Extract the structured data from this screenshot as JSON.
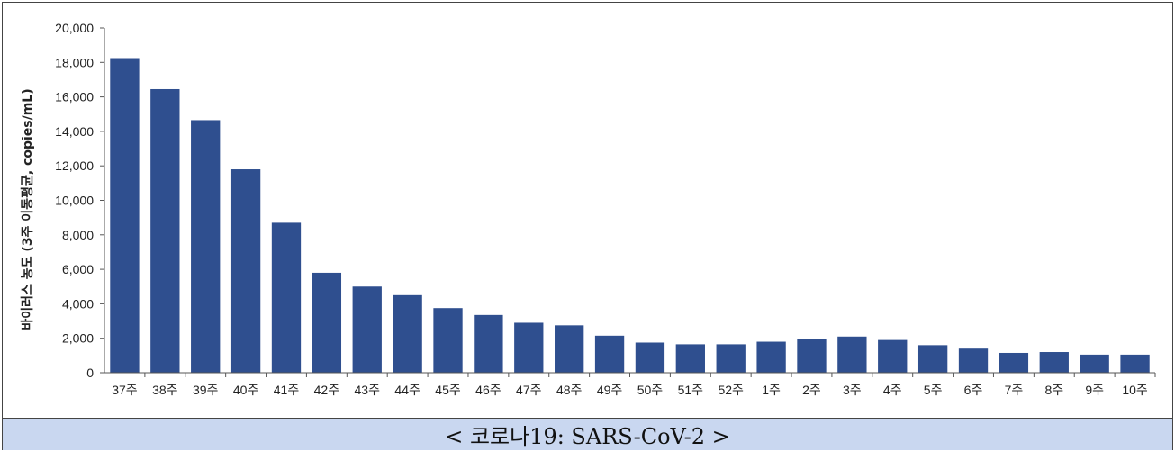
{
  "chart_data": {
    "type": "bar",
    "title": "",
    "xlabel": "",
    "ylabel": "바이러스 농도 (3주 이동평균, copies/mL)",
    "ylim": [
      0,
      20000
    ],
    "yticks": [
      "0",
      "2,000",
      "4,000",
      "6,000",
      "8,000",
      "10,000",
      "12,000",
      "14,000",
      "16,000",
      "18,000",
      "20,000"
    ],
    "categories": [
      "37주",
      "38주",
      "39주",
      "40주",
      "41주",
      "42주",
      "43주",
      "44주",
      "45주",
      "46주",
      "47주",
      "48주",
      "49주",
      "50주",
      "51주",
      "52주",
      "1주",
      "2주",
      "3주",
      "4주",
      "5주",
      "6주",
      "7주",
      "8주",
      "9주",
      "10주"
    ],
    "values": [
      18250,
      16450,
      14650,
      11800,
      8700,
      5800,
      5000,
      4500,
      3750,
      3350,
      2900,
      2750,
      2150,
      1750,
      1650,
      1650,
      1800,
      1950,
      2100,
      1900,
      1600,
      1400,
      1150,
      1200,
      1050,
      1050
    ],
    "bar_color": "#2f4f8f",
    "grid": false,
    "legend": "none"
  },
  "caption": "< 코로나19: SARS-CoV-2 >"
}
